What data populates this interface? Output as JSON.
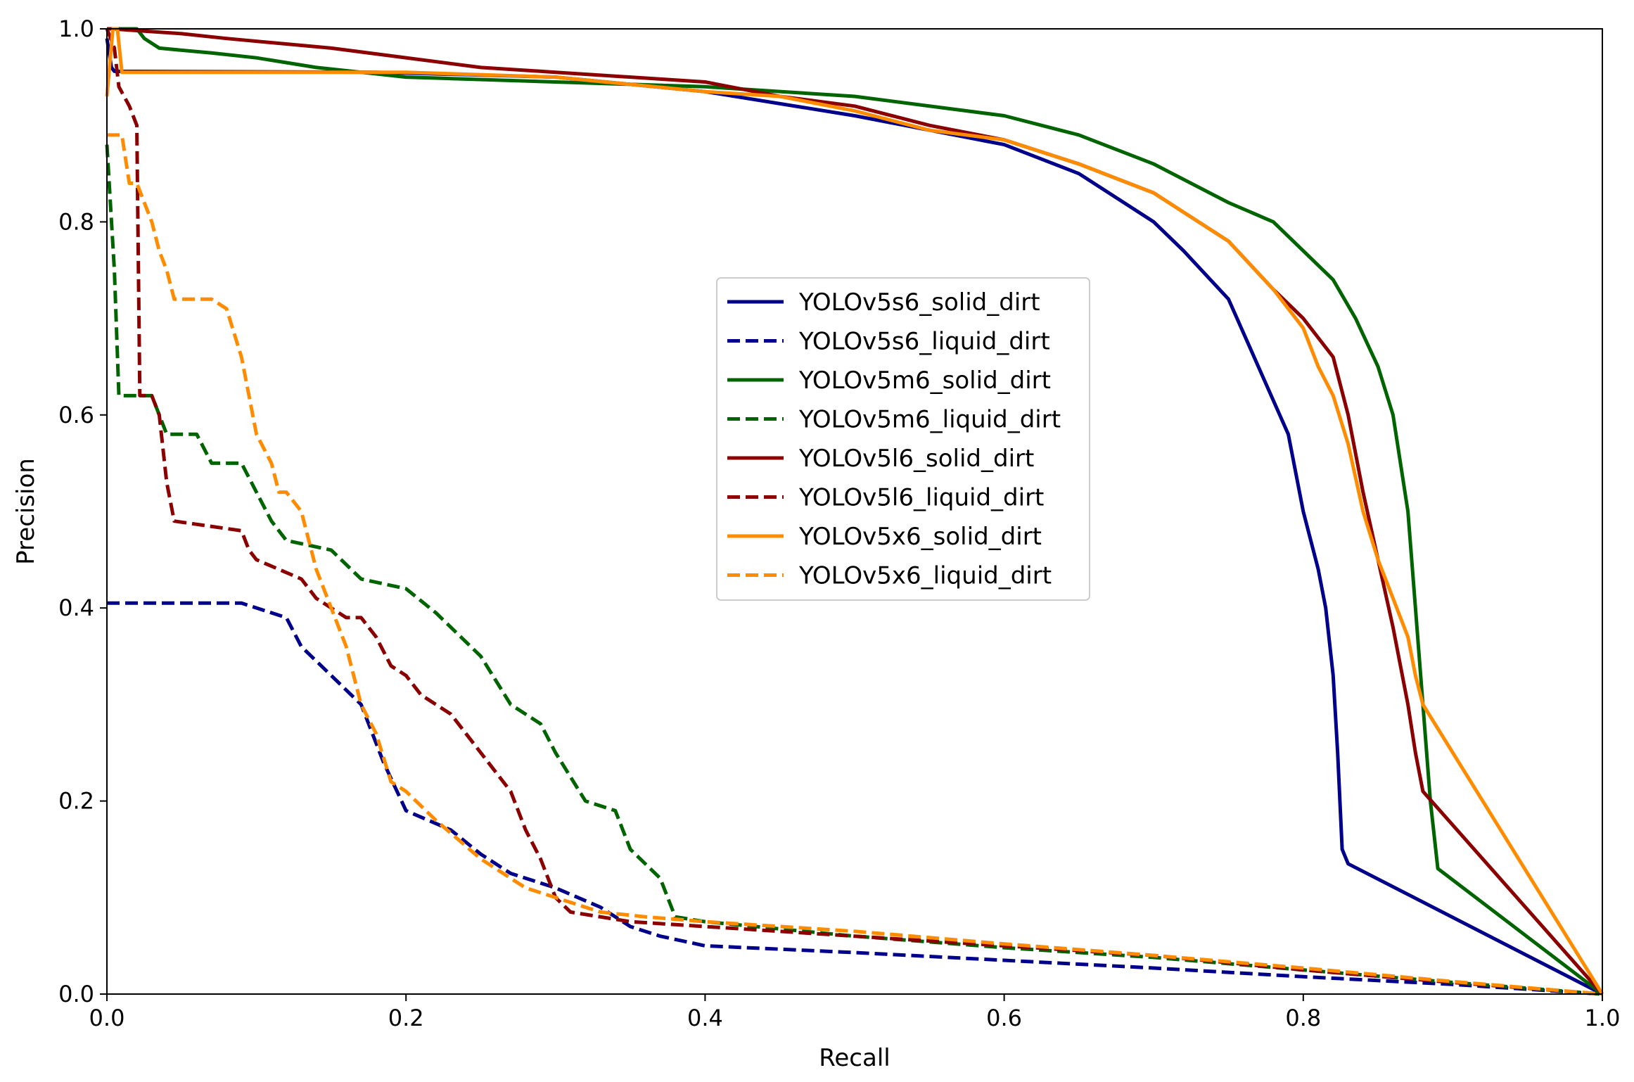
{
  "chart_data": {
    "type": "line",
    "title": "",
    "xlabel": "Recall",
    "ylabel": "Precision",
    "xlim": [
      0.0,
      1.0
    ],
    "ylim": [
      0.0,
      1.0
    ],
    "xticks": [
      "0.0",
      "0.2",
      "0.4",
      "0.6",
      "0.8",
      "1.0"
    ],
    "yticks": [
      "0.0",
      "0.2",
      "0.4",
      "0.6",
      "0.8",
      "1.0"
    ],
    "legend_position": "center",
    "grid": false,
    "series": [
      {
        "name": "YOLOv5s6_solid_dirt",
        "color": "#00008b",
        "dash": "solid",
        "x": [
          0.0,
          0.003,
          0.005,
          0.18,
          0.3,
          0.4,
          0.5,
          0.6,
          0.65,
          0.7,
          0.72,
          0.75,
          0.77,
          0.79,
          0.8,
          0.81,
          0.815,
          0.82,
          0.823,
          0.826,
          0.83,
          1.0
        ],
        "y": [
          0.99,
          0.96,
          0.956,
          0.955,
          0.95,
          0.935,
          0.91,
          0.88,
          0.85,
          0.8,
          0.77,
          0.72,
          0.65,
          0.58,
          0.5,
          0.44,
          0.4,
          0.33,
          0.25,
          0.15,
          0.135,
          0.0
        ]
      },
      {
        "name": "YOLOv5s6_liquid_dirt",
        "color": "#00008b",
        "dash": "dashed",
        "x": [
          0.0,
          0.09,
          0.12,
          0.13,
          0.15,
          0.17,
          0.18,
          0.185,
          0.2,
          0.23,
          0.25,
          0.27,
          0.3,
          0.33,
          0.35,
          0.37,
          0.4,
          0.5,
          0.6,
          0.7,
          0.8,
          0.9,
          1.0
        ],
        "y": [
          0.405,
          0.405,
          0.39,
          0.36,
          0.33,
          0.3,
          0.26,
          0.24,
          0.19,
          0.17,
          0.145,
          0.125,
          0.11,
          0.09,
          0.07,
          0.06,
          0.05,
          0.043,
          0.035,
          0.027,
          0.018,
          0.01,
          0.0
        ]
      },
      {
        "name": "YOLOv5m6_solid_dirt",
        "color": "#006400",
        "dash": "solid",
        "x": [
          0.0,
          0.02,
          0.025,
          0.035,
          0.07,
          0.1,
          0.14,
          0.17,
          0.2,
          0.3,
          0.4,
          0.5,
          0.6,
          0.65,
          0.7,
          0.75,
          0.78,
          0.8,
          0.82,
          0.835,
          0.85,
          0.86,
          0.87,
          0.875,
          0.88,
          0.885,
          0.89,
          1.0
        ],
        "y": [
          1.0,
          1.0,
          0.99,
          0.98,
          0.975,
          0.97,
          0.96,
          0.955,
          0.95,
          0.945,
          0.94,
          0.93,
          0.91,
          0.89,
          0.86,
          0.82,
          0.8,
          0.77,
          0.74,
          0.7,
          0.65,
          0.6,
          0.5,
          0.4,
          0.3,
          0.2,
          0.13,
          0.0
        ]
      },
      {
        "name": "YOLOv5m6_liquid_dirt",
        "color": "#006400",
        "dash": "dashed",
        "x": [
          0.0,
          0.005,
          0.008,
          0.03,
          0.035,
          0.04,
          0.06,
          0.07,
          0.09,
          0.1,
          0.11,
          0.12,
          0.15,
          0.17,
          0.2,
          0.22,
          0.25,
          0.27,
          0.29,
          0.3,
          0.32,
          0.34,
          0.35,
          0.37,
          0.38,
          0.4,
          0.5,
          0.6,
          0.7,
          0.8,
          0.9,
          1.0
        ],
        "y": [
          0.88,
          0.75,
          0.62,
          0.62,
          0.6,
          0.58,
          0.58,
          0.55,
          0.55,
          0.52,
          0.49,
          0.47,
          0.46,
          0.43,
          0.42,
          0.395,
          0.35,
          0.3,
          0.28,
          0.25,
          0.2,
          0.19,
          0.15,
          0.12,
          0.08,
          0.075,
          0.06,
          0.048,
          0.038,
          0.025,
          0.012,
          0.0
        ]
      },
      {
        "name": "YOLOv5l6_solid_dirt",
        "color": "#8b0000",
        "dash": "solid",
        "x": [
          0.0,
          0.003,
          0.05,
          0.08,
          0.15,
          0.25,
          0.3,
          0.4,
          0.45,
          0.5,
          0.55,
          0.6,
          0.65,
          0.7,
          0.72,
          0.75,
          0.78,
          0.8,
          0.82,
          0.83,
          0.84,
          0.85,
          0.86,
          0.87,
          0.875,
          0.88,
          1.0
        ],
        "y": [
          1.0,
          1.0,
          0.995,
          0.99,
          0.98,
          0.96,
          0.955,
          0.945,
          0.93,
          0.92,
          0.9,
          0.885,
          0.86,
          0.83,
          0.81,
          0.78,
          0.73,
          0.7,
          0.66,
          0.6,
          0.52,
          0.45,
          0.38,
          0.3,
          0.25,
          0.21,
          0.0
        ]
      },
      {
        "name": "YOLOv5l6_liquid_dirt",
        "color": "#8b0000",
        "dash": "dashed",
        "x": [
          0.0,
          0.005,
          0.008,
          0.015,
          0.02,
          0.022,
          0.03,
          0.035,
          0.04,
          0.045,
          0.09,
          0.095,
          0.1,
          0.13,
          0.14,
          0.15,
          0.16,
          0.17,
          0.18,
          0.19,
          0.2,
          0.21,
          0.23,
          0.25,
          0.27,
          0.28,
          0.29,
          0.3,
          0.31,
          0.35,
          0.4,
          0.5,
          0.6,
          0.7,
          0.8,
          0.9,
          1.0
        ],
        "y": [
          1.0,
          0.98,
          0.94,
          0.92,
          0.9,
          0.62,
          0.62,
          0.6,
          0.53,
          0.49,
          0.48,
          0.46,
          0.45,
          0.43,
          0.41,
          0.4,
          0.39,
          0.39,
          0.37,
          0.34,
          0.33,
          0.31,
          0.29,
          0.25,
          0.21,
          0.17,
          0.14,
          0.1,
          0.085,
          0.075,
          0.07,
          0.06,
          0.05,
          0.04,
          0.025,
          0.012,
          0.0
        ]
      },
      {
        "name": "YOLOv5x6_solid_dirt",
        "color": "#ff8c00",
        "dash": "solid",
        "x": [
          0.0,
          0.004,
          0.007,
          0.01,
          0.05,
          0.1,
          0.2,
          0.3,
          0.4,
          0.45,
          0.5,
          0.55,
          0.6,
          0.65,
          0.7,
          0.72,
          0.75,
          0.78,
          0.8,
          0.81,
          0.82,
          0.83,
          0.84,
          0.85,
          0.86,
          0.87,
          0.875,
          0.88,
          1.0
        ],
        "y": [
          0.93,
          1.0,
          1.0,
          0.955,
          0.955,
          0.955,
          0.955,
          0.95,
          0.935,
          0.93,
          0.915,
          0.895,
          0.885,
          0.86,
          0.83,
          0.81,
          0.78,
          0.73,
          0.69,
          0.65,
          0.62,
          0.57,
          0.5,
          0.45,
          0.41,
          0.37,
          0.33,
          0.3,
          0.0
        ]
      },
      {
        "name": "YOLOv5x6_liquid_dirt",
        "color": "#ff8c00",
        "dash": "dashed",
        "x": [
          0.0,
          0.01,
          0.012,
          0.015,
          0.02,
          0.025,
          0.03,
          0.035,
          0.04,
          0.045,
          0.05,
          0.06,
          0.07,
          0.08,
          0.09,
          0.095,
          0.1,
          0.11,
          0.115,
          0.12,
          0.13,
          0.14,
          0.15,
          0.16,
          0.17,
          0.18,
          0.19,
          0.2,
          0.22,
          0.25,
          0.28,
          0.3,
          0.33,
          0.36,
          0.4,
          0.5,
          0.6,
          0.7,
          0.8,
          0.9,
          1.0
        ],
        "y": [
          0.89,
          0.89,
          0.87,
          0.84,
          0.84,
          0.82,
          0.8,
          0.77,
          0.75,
          0.72,
          0.72,
          0.72,
          0.72,
          0.71,
          0.66,
          0.62,
          0.58,
          0.55,
          0.52,
          0.52,
          0.5,
          0.44,
          0.4,
          0.36,
          0.3,
          0.27,
          0.22,
          0.21,
          0.18,
          0.14,
          0.11,
          0.1,
          0.085,
          0.08,
          0.075,
          0.065,
          0.052,
          0.04,
          0.027,
          0.013,
          0.0
        ]
      }
    ]
  }
}
